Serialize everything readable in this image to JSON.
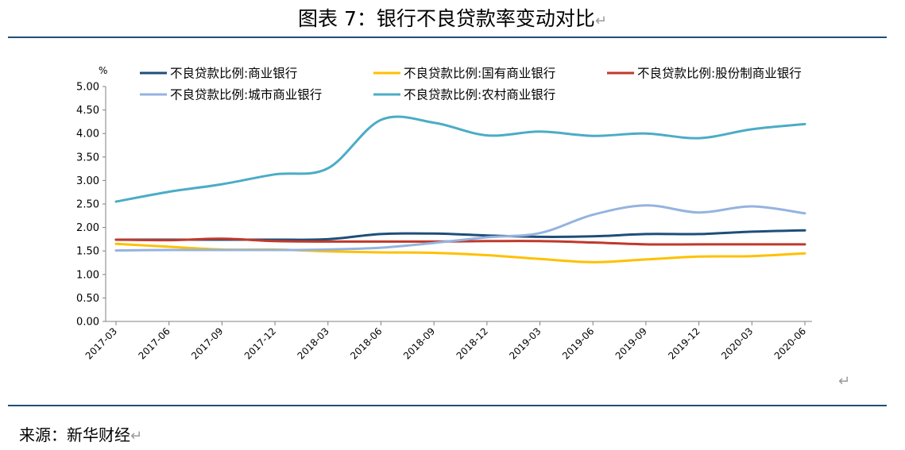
{
  "figure": {
    "title": "图表 7：银行不良贷款率变动对比",
    "source": "来源：新华财经"
  },
  "chart_data": {
    "type": "line",
    "ylabel": "%",
    "ylim": [
      0,
      5
    ],
    "y_ticks": [
      "0.00",
      "0.50",
      "1.00",
      "1.50",
      "2.00",
      "2.50",
      "3.00",
      "3.50",
      "4.00",
      "4.50",
      "5.00"
    ],
    "categories": [
      "2017-03",
      "2017-06",
      "2017-09",
      "2017-12",
      "2018-03",
      "2018-06",
      "2018-09",
      "2018-12",
      "2019-03",
      "2019-06",
      "2019-09",
      "2019-12",
      "2020-03",
      "2020-06"
    ],
    "legend_position": "top",
    "grid": false,
    "series": [
      {
        "name": "不良贷款比例:商业银行",
        "color": "#1f4e79",
        "values": [
          1.74,
          1.74,
          1.74,
          1.74,
          1.75,
          1.86,
          1.87,
          1.83,
          1.8,
          1.81,
          1.86,
          1.86,
          1.91,
          1.94
        ]
      },
      {
        "name": "不良贷款比例:国有商业银行",
        "color": "#ffc000",
        "values": [
          1.65,
          1.59,
          1.53,
          1.53,
          1.49,
          1.47,
          1.46,
          1.41,
          1.33,
          1.26,
          1.32,
          1.38,
          1.39,
          1.45
        ]
      },
      {
        "name": "不良贷款比例:股份制商业银行",
        "color": "#c0392b",
        "values": [
          1.74,
          1.73,
          1.76,
          1.71,
          1.7,
          1.7,
          1.7,
          1.71,
          1.71,
          1.68,
          1.64,
          1.64,
          1.64,
          1.64
        ]
      },
      {
        "name": "不良贷款比例:城市商业银行",
        "color": "#95b3e0",
        "values": [
          1.51,
          1.52,
          1.52,
          1.52,
          1.53,
          1.57,
          1.67,
          1.79,
          1.88,
          2.27,
          2.47,
          2.32,
          2.45,
          2.3
        ]
      },
      {
        "name": "不良贷款比例:农村商业银行",
        "color": "#4bacc6",
        "values": [
          2.55,
          2.76,
          2.92,
          3.13,
          3.26,
          4.29,
          4.23,
          3.96,
          4.04,
          3.95,
          4.0,
          3.9,
          4.09,
          4.2
        ]
      }
    ]
  }
}
